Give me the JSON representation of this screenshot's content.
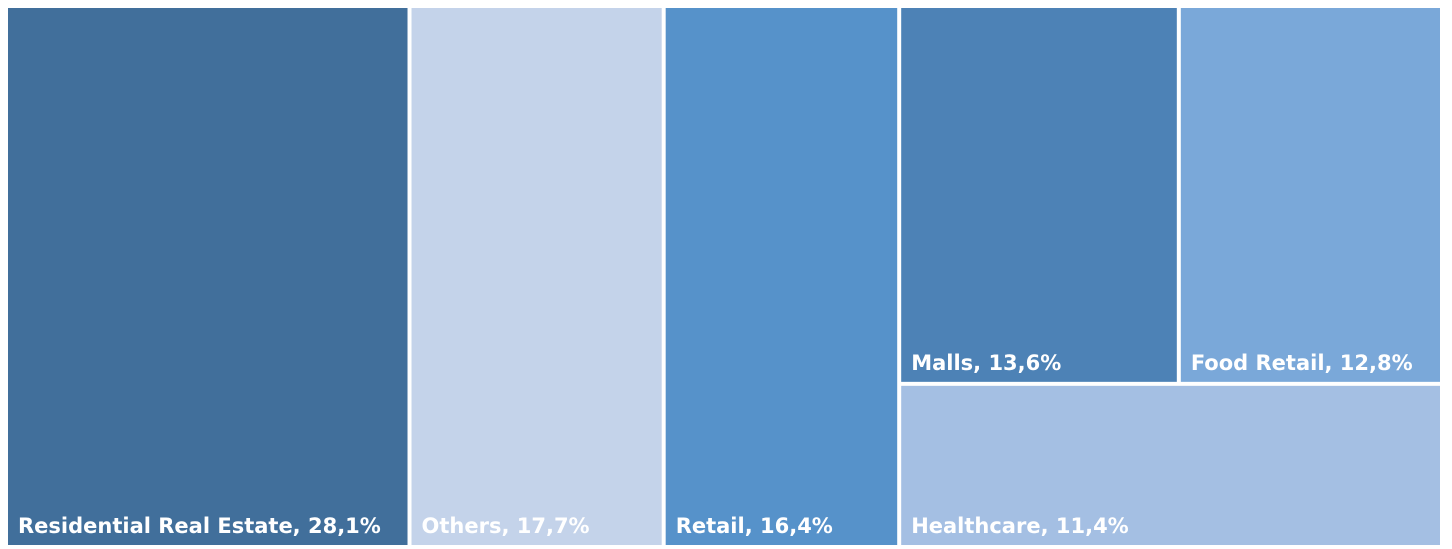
{
  "chart_data": {
    "type": "treemap",
    "values": [
      28.1,
      17.7,
      16.4,
      13.6,
      12.8,
      11.4
    ],
    "value_labels": [
      "Residential Real Estate, 28,1%",
      "Others, 17,7%",
      "Retail, 16,4%",
      "Malls, 13,6%",
      "Food Retail, 12,8%",
      "Healthcare, 11,4%"
    ],
    "colors": [
      "#416f9b",
      "#c4d3ea",
      "#5692ca",
      "#4d82b6",
      "#7aa8d9",
      "#a4bfe3"
    ]
  }
}
